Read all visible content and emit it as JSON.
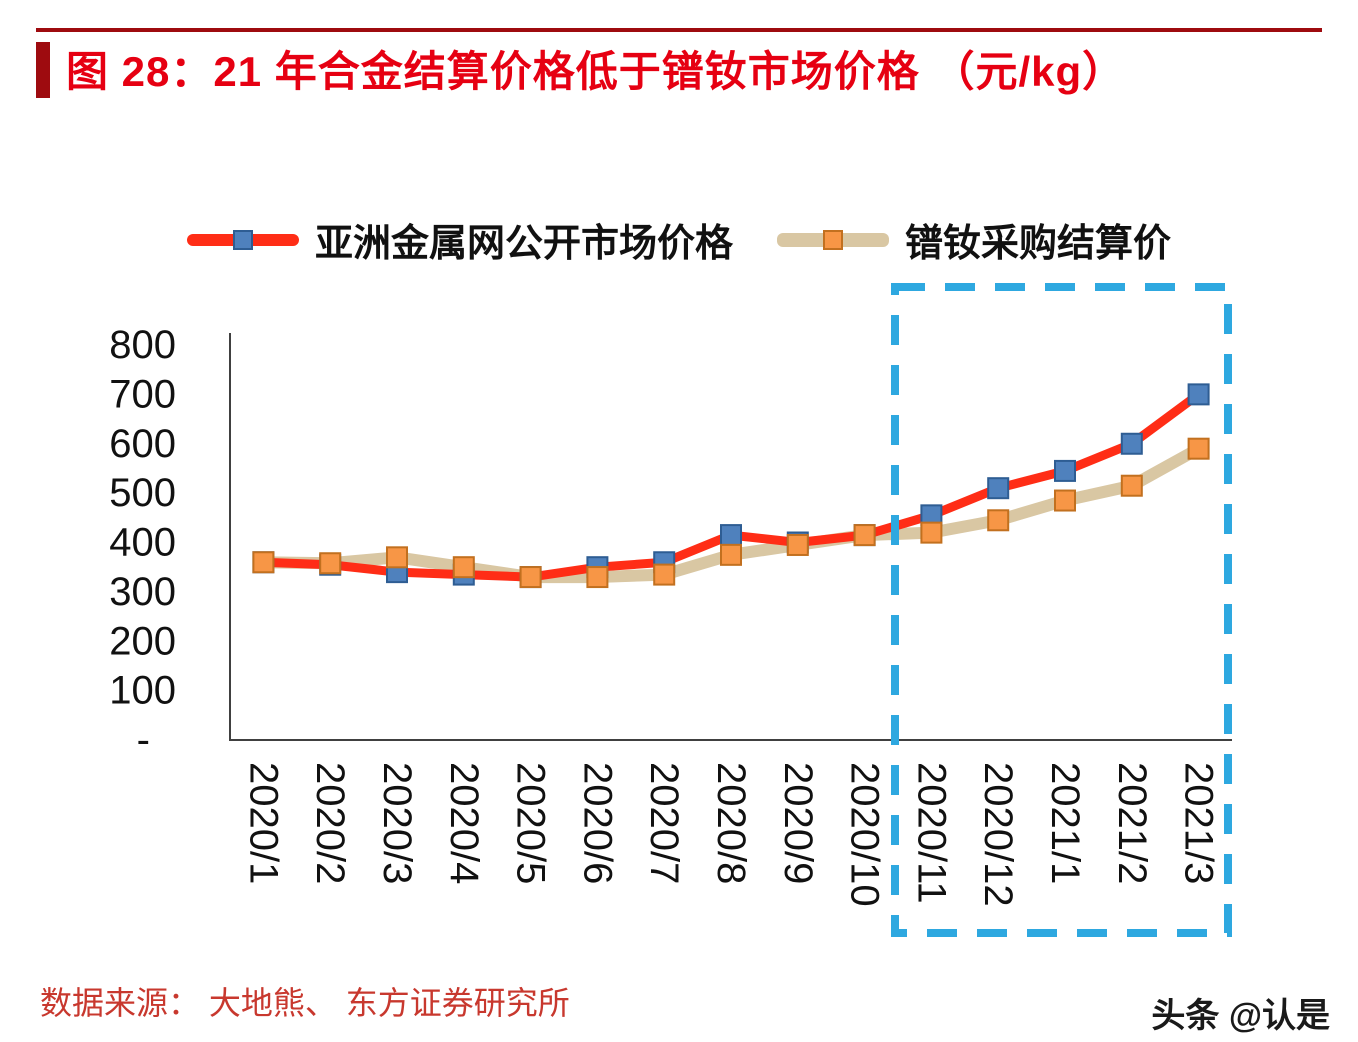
{
  "header": {
    "title": "图 28：21 年合金结算价格低于镨钕市场价格 （元/kg）"
  },
  "footer": {
    "source": "数据来源：  大地熊、 东方证券研究所",
    "watermark": "头条 @认是"
  },
  "colors": {
    "accent_red": "#e60012",
    "bar_dark_red": "#9e0b0f",
    "market_line": "#ff2d16",
    "market_marker": "#4f81bd",
    "settlement_line": "#d9c7a3",
    "settlement_marker": "#f79646",
    "highlight_box": "#2ea8e0",
    "source_text": "#c8382e",
    "axis_color": "#404040",
    "tick_label_color": "#111111"
  },
  "chart_data": {
    "type": "line",
    "title": "图 28：21 年合金结算价格低于镨钕市场价格 （元/kg）",
    "unit": "元/kg",
    "categories": [
      "2020/1",
      "2020/2",
      "2020/3",
      "2020/4",
      "2020/5",
      "2020/6",
      "2020/7",
      "2020/8",
      "2020/9",
      "2020/10",
      "2020/11",
      "2020/12",
      "2021/1",
      "2021/2",
      "2021/3"
    ],
    "series": [
      {
        "name": "亚洲金属网公开市场价格",
        "color_key": "market_line",
        "marker_key": "market_marker",
        "values": [
          360,
          355,
          340,
          335,
          330,
          350,
          360,
          415,
          400,
          415,
          455,
          510,
          545,
          600,
          700
        ]
      },
      {
        "name": "镨钕采购结算价",
        "color_key": "settlement_line",
        "marker_key": "settlement_marker",
        "values": [
          360,
          358,
          370,
          350,
          330,
          330,
          335,
          375,
          395,
          415,
          420,
          445,
          485,
          515,
          590
        ]
      }
    ],
    "ylim": [
      0,
      800
    ],
    "y_tick_labels": [
      "800",
      "700",
      "600",
      "500",
      "400",
      "300",
      "200",
      "100",
      "-"
    ],
    "grid": false,
    "legend_position": "top",
    "highlight": {
      "style": "dashed-box",
      "from_category": "2020/11",
      "to_category": "2021/3"
    }
  }
}
